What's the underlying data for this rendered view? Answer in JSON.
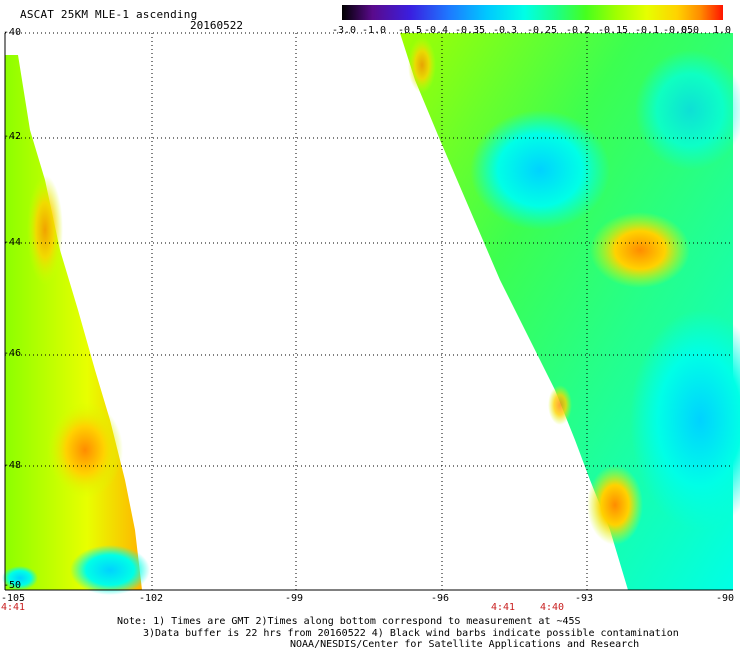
{
  "header": {
    "title": "ASCAT 25KM MLE-1 ascending",
    "date": "20160522"
  },
  "colorbar": {
    "labels": [
      "-3.0",
      "-1.0",
      "-0.5",
      "-0.4",
      "-0.35",
      "-0.3",
      "-0.25",
      "-0.2",
      "-0.15",
      "-0.1",
      "-0.05",
      "0.0",
      "1.0"
    ],
    "colors": [
      "#000000",
      "#5a0a8c",
      "#3a1fe0",
      "#1e78ff",
      "#00c8ff",
      "#00ffe6",
      "#19ff8c",
      "#46ff1e",
      "#a0ff00",
      "#e6ff00",
      "#ffd200",
      "#ff8c00",
      "#ff1400"
    ]
  },
  "map": {
    "lat_labels": [
      "-40",
      "-42",
      "-44",
      "-46",
      "-48",
      "-50"
    ],
    "lon_labels": [
      "-105",
      "-102",
      "-99",
      "-96",
      "-93",
      "-90"
    ],
    "lon_range": [
      -105,
      -90
    ],
    "lat_range": [
      -50,
      -40
    ],
    "time_labels": [
      "4:41",
      "4:41",
      "4:40"
    ]
  },
  "notes": {
    "line1": "Note: 1) Times are GMT 2)Times along bottom correspond to measurement at ~45S",
    "line2": "3)Data buffer is 22 hrs from 20160522 4) Black wind barbs indicate possible contamination",
    "line3": "NOAA/NESDIS/Center for Satellite Applications and Research"
  }
}
